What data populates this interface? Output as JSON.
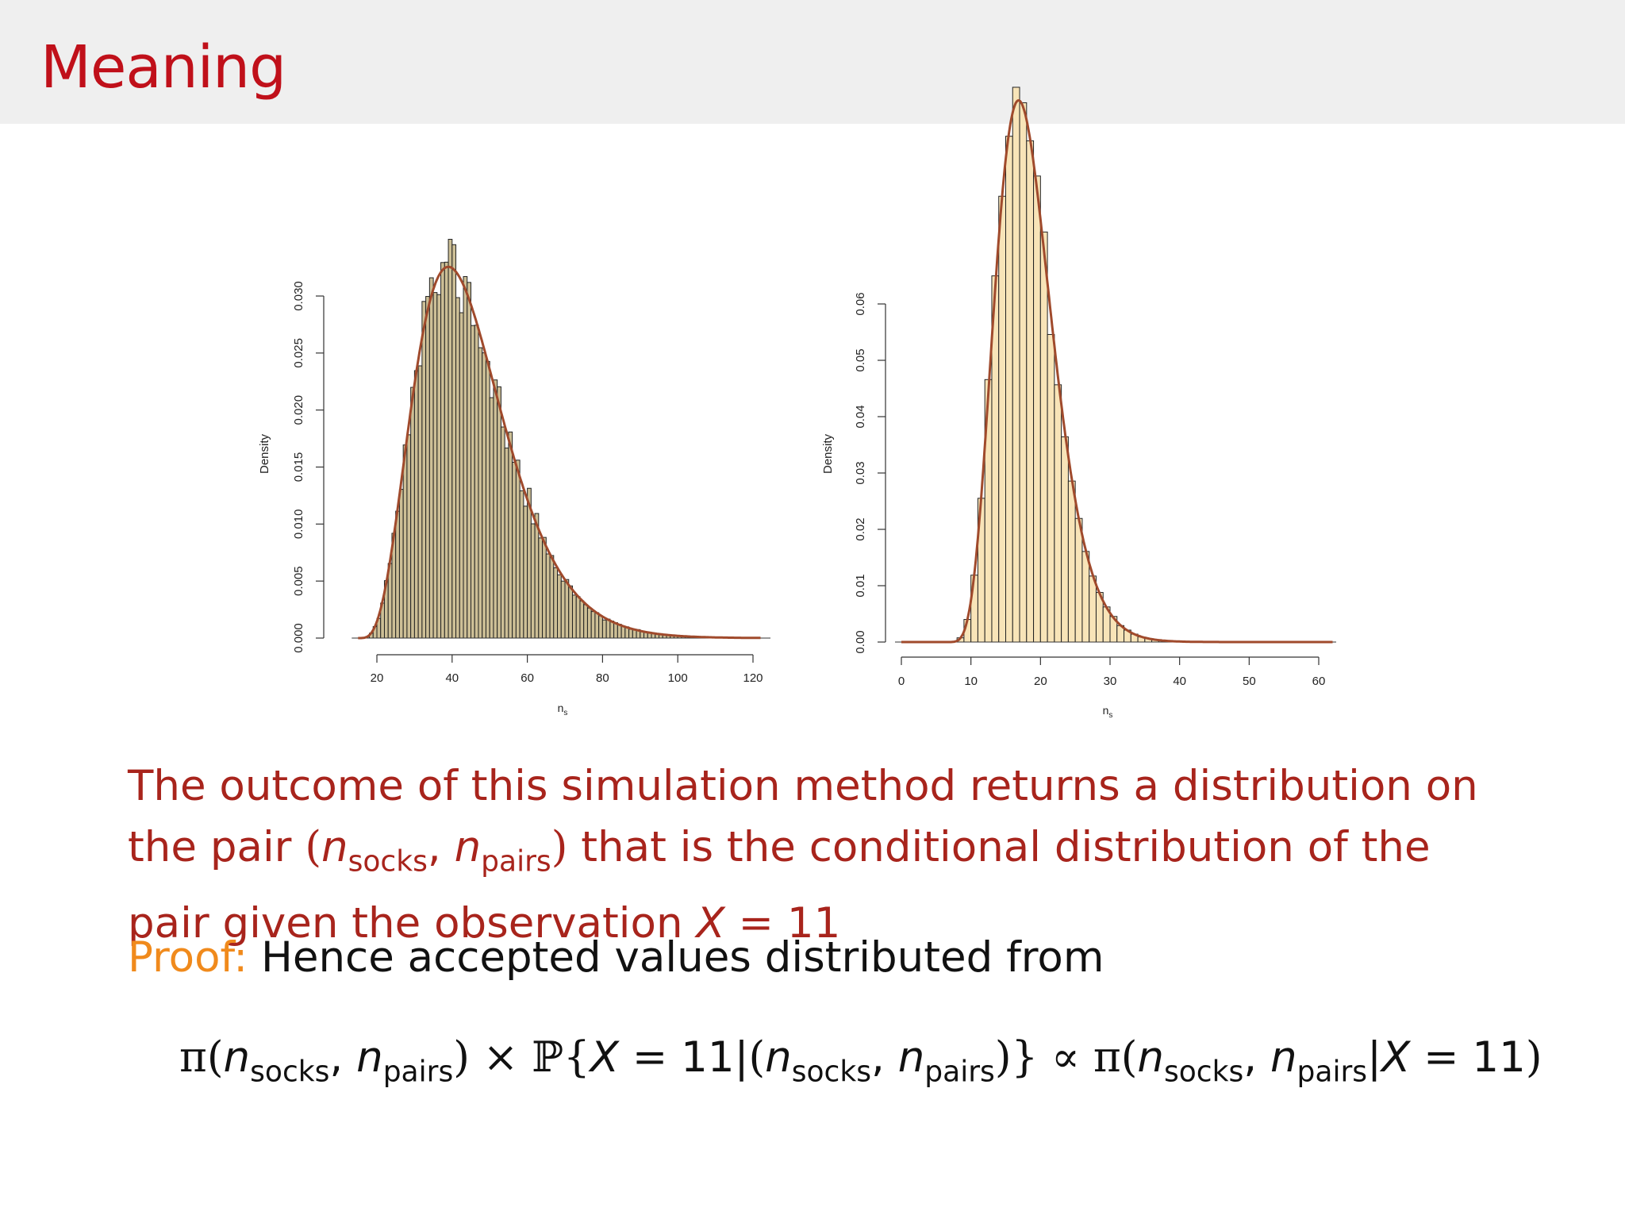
{
  "slide": {
    "title": "Meaning"
  },
  "body": {
    "line1": "The outcome of this simulation method returns a distribution on",
    "line2_pre": "the pair ",
    "line2_post": " that is the conditional distribution of the",
    "line3_pre": "pair given the observation ",
    "var_n": "n",
    "sub_socks": "socks",
    "sub_pairs": "pairs",
    "var_X": "X",
    "eq": "=",
    "value": "11"
  },
  "proof": {
    "label": "Proof:",
    "text": "Hence accepted values distributed from"
  },
  "equation": {
    "pi": "π",
    "times": "×",
    "prob": "ℙ",
    "propto": "∝"
  },
  "chart_data": [
    {
      "type": "bar",
      "title": "",
      "xlabel": "n",
      "xlabel_sub": "s",
      "ylabel": "Density",
      "xlim": [
        15,
        122
      ],
      "ylim": [
        0,
        0.03
      ],
      "xticks": [
        "20",
        "40",
        "60",
        "80",
        "100",
        "120"
      ],
      "yticks": [
        "0.000",
        "0.005",
        "0.010",
        "0.015",
        "0.020",
        "0.025",
        "0.030"
      ],
      "bar_color": "#cdbf96",
      "curve_color": "#a04a2c",
      "bin_width": 1,
      "curve": {
        "shape": 5.0,
        "scale": 6.0,
        "shift": 15.0
      }
    },
    {
      "type": "bar",
      "title": "",
      "xlabel": "n",
      "xlabel_sub": "s",
      "ylabel": "Density",
      "xlim": [
        0,
        62
      ],
      "ylim": [
        0,
        0.06
      ],
      "xticks": [
        "0",
        "10",
        "20",
        "30",
        "40",
        "50",
        "60"
      ],
      "yticks": [
        "0.00",
        "0.01",
        "0.02",
        "0.03",
        "0.04",
        "0.05",
        "0.06"
      ],
      "bar_color": "#f8e4b8",
      "curve_color": "#a04a2c",
      "bin_width": 1,
      "curve": {
        "shape": 8.0,
        "scale": 1.55,
        "shift": 6.0
      }
    }
  ]
}
